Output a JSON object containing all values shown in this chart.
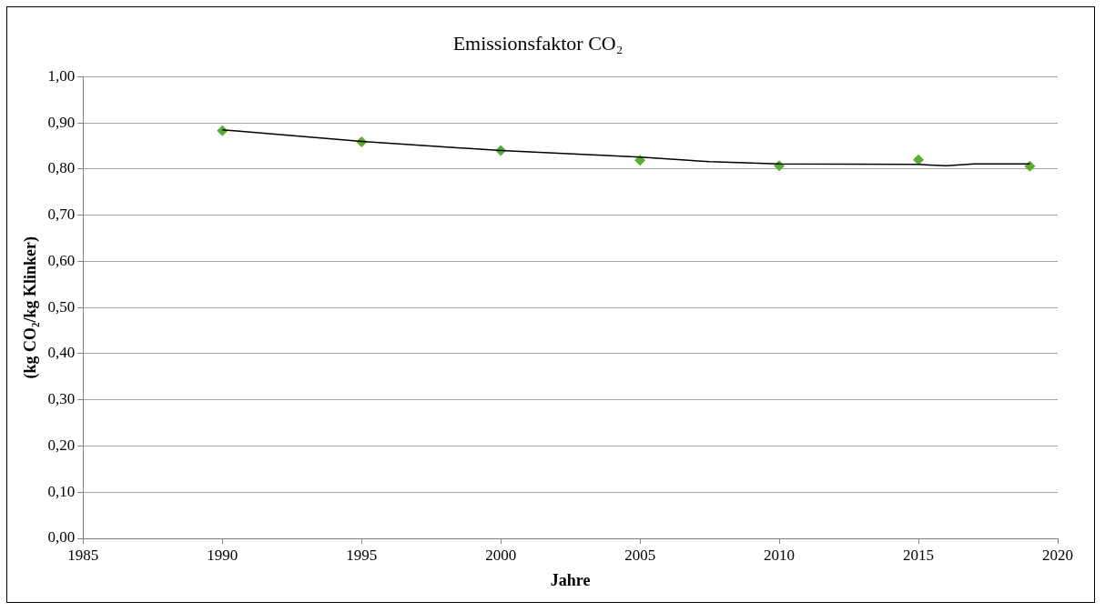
{
  "chart_data": {
    "type": "scatter",
    "title": "Emissionsfaktor CO₂",
    "xlabel": "Jahre",
    "ylabel": "(kg CO₂/kg Klinker)",
    "series": [
      {
        "color": "#5aab2e",
        "x": [
          1990,
          1995,
          2000,
          2005,
          2010,
          2015,
          2019
        ],
        "values": [
          0.883,
          0.859,
          0.84,
          0.819,
          0.807,
          0.82,
          0.806
        ]
      },
      {
        "type": "line",
        "color": "#000000",
        "marker": "none",
        "x": [
          1990,
          1995,
          2000,
          2005,
          2007.5,
          2010,
          2015,
          2016,
          2017,
          2019
        ],
        "values": [
          0.885,
          0.86,
          0.84,
          0.826,
          0.816,
          0.811,
          0.81,
          0.807,
          0.811,
          0.811
        ]
      }
    ],
    "marker": "diamond",
    "xlim": [
      1985,
      2020
    ],
    "xticks": [
      1985,
      1990,
      1995,
      2000,
      2005,
      2010,
      2015,
      2020
    ],
    "ylim": [
      0,
      1
    ],
    "yticks": [
      {
        "value": 0,
        "label": "0,00"
      },
      {
        "value": 0.1,
        "label": "0,10"
      },
      {
        "value": 0.2,
        "label": "0,20"
      },
      {
        "value": 0.3,
        "label": "0,30"
      },
      {
        "value": 0.4,
        "label": "0,40"
      },
      {
        "value": 0.5,
        "label": "0,50"
      },
      {
        "value": 0.6,
        "label": "0,60"
      },
      {
        "value": 0.7,
        "label": "0,70"
      },
      {
        "value": 0.8,
        "label": "0,80"
      },
      {
        "value": 0.9,
        "label": "0,90"
      },
      {
        "value": 1,
        "label": "1,00"
      }
    ],
    "grid": "y",
    "legend": false
  }
}
